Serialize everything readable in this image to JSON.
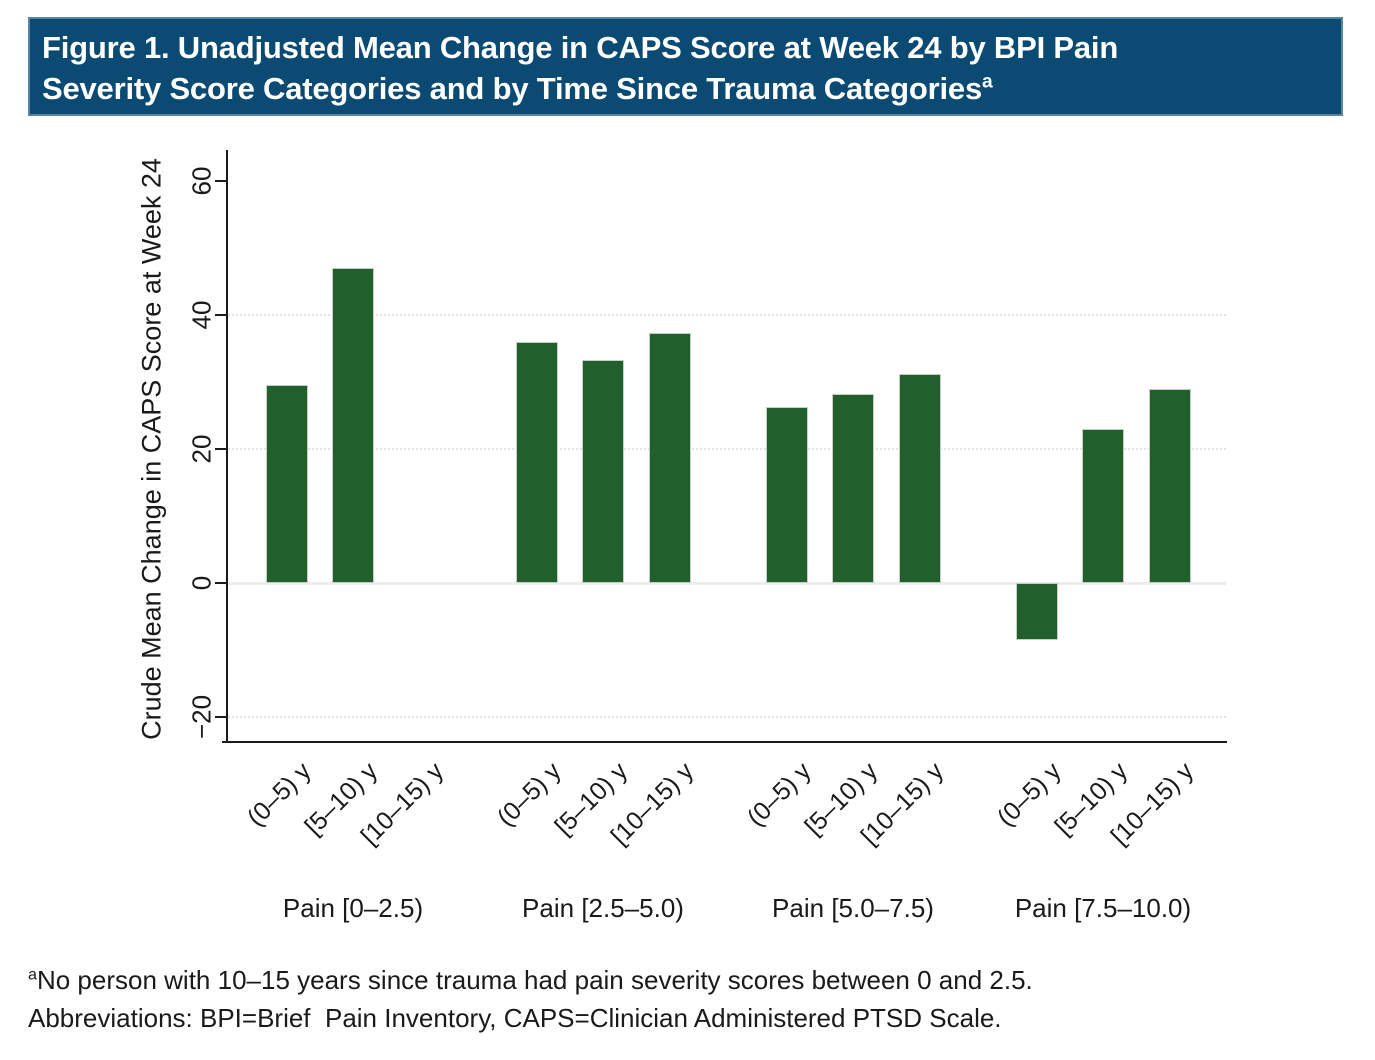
{
  "title": {
    "line1": "Figure 1. Unadjusted Mean Change in CAPS Score at Week 24 by BPI Pain",
    "line2": "Severity Score Categories and by Time Since Trauma Categories",
    "superscript": "a"
  },
  "chart_data": {
    "type": "bar",
    "title": "Unadjusted Mean Change in CAPS Score at Week 24 by BPI Pain Severity Score Categories and by Time Since Trauma Categories",
    "xlabel": "",
    "ylabel": "Crude Mean Change in CAPS Score at Week 24",
    "ylim": [
      -24,
      64
    ],
    "yticks": [
      {
        "value": 60,
        "label": "60"
      },
      {
        "value": 40,
        "label": "40"
      },
      {
        "value": 20,
        "label": "20"
      },
      {
        "value": 0,
        "label": "0"
      },
      {
        "value": -20,
        "label": "−20"
      }
    ],
    "gridlines": [
      40,
      20,
      -20
    ],
    "grid": "horizontal-dotted",
    "legend": null,
    "bar_color": "#215f2c",
    "categories": [
      "(0–5) y",
      "[5–10) y",
      "[10–15) y"
    ],
    "groups": [
      {
        "label": "Pain [0–2.5)",
        "values": [
          29.5,
          47,
          null
        ]
      },
      {
        "label": "Pain [2.5–5.0)",
        "values": [
          36,
          33.3,
          37.3
        ]
      },
      {
        "label": "Pain [5.0–7.5)",
        "values": [
          26.3,
          28.2,
          31.2
        ]
      },
      {
        "label": "Pain [7.5–10.0)",
        "values": [
          -8.5,
          23,
          29
        ]
      }
    ]
  },
  "footnote": {
    "superscript": "a",
    "note": "No person with 10–15 years since trauma had pain severity scores between 0 and 2.5.",
    "abbreviations": "Abbreviations: BPI=Brief  Pain Inventory, CAPS=Clinician Administered PTSD Scale."
  },
  "colors": {
    "header_background": "#0b4b73",
    "rule_blue": "#1d6b96",
    "bar_green": "#215f2c",
    "axis": "#1c1c1c"
  }
}
